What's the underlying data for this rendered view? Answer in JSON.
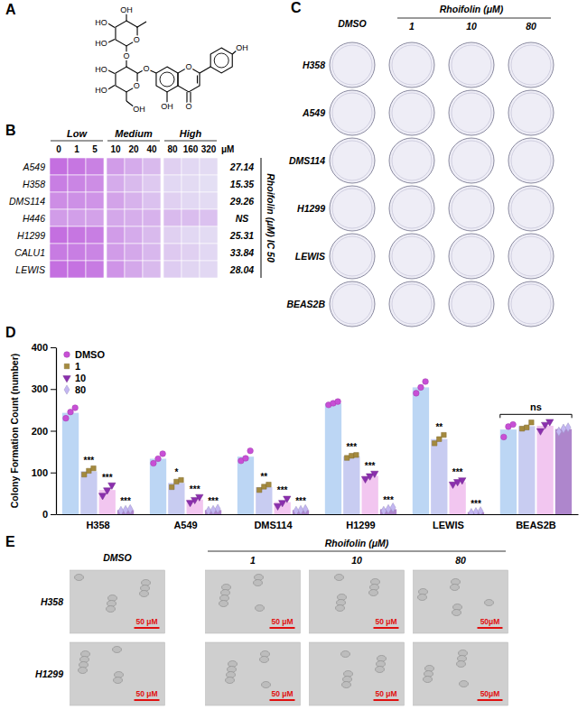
{
  "panel_labels": [
    "A",
    "B",
    "C",
    "D",
    "E"
  ],
  "structure": {
    "atoms": [
      "O",
      "HO",
      "HO",
      "OH",
      "O",
      "O",
      "HO",
      "HO",
      "OH",
      "O",
      "O",
      "OH",
      "O",
      "OH"
    ]
  },
  "colony_images": {
    "treatment": "Rhoifolin (μM)",
    "columns": [
      "DMSO",
      "1",
      "10",
      "80"
    ],
    "rows": [
      "H358",
      "A549",
      "DMS114",
      "H1299",
      "LEWIS",
      "BEAS2B"
    ]
  },
  "microscopy": {
    "treatment": "Rhoifolin (μM)",
    "columns": [
      "DMSO",
      "1",
      "10",
      "80"
    ],
    "rows": [
      "H358",
      "H1299"
    ],
    "scale_bars": [
      [
        "50 μM",
        "50 μM",
        "50 μM",
        "50μM"
      ],
      [
        "50 μM",
        "50 μM",
        "50 μM",
        "50μM"
      ]
    ]
  },
  "chart_data": [
    {
      "type": "heatmap",
      "title": "Rhoifolin (μM) IC 50",
      "x_unit": "μM",
      "groups": [
        {
          "name": "Low",
          "x": [
            0,
            1,
            5
          ]
        },
        {
          "name": "Medium",
          "x": [
            10,
            20,
            40
          ]
        },
        {
          "name": "High",
          "x": [
            80,
            160,
            320
          ]
        }
      ],
      "rows": [
        "A549",
        "H358",
        "DMS114",
        "H446",
        "H1299",
        "CALU1",
        "LEWIS"
      ],
      "cells": [
        [
          100,
          95,
          88,
          70,
          60,
          50,
          35,
          30,
          28
        ],
        [
          90,
          85,
          80,
          60,
          50,
          40,
          30,
          28,
          25
        ],
        [
          80,
          78,
          75,
          65,
          55,
          45,
          35,
          30,
          28
        ],
        [
          70,
          68,
          66,
          62,
          58,
          55,
          50,
          48,
          45
        ],
        [
          100,
          95,
          90,
          70,
          60,
          50,
          35,
          30,
          28
        ],
        [
          92,
          90,
          85,
          70,
          62,
          52,
          40,
          35,
          30
        ],
        [
          100,
          98,
          92,
          75,
          62,
          50,
          38,
          32,
          30
        ]
      ],
      "ic50": [
        27.14,
        15.35,
        29.26,
        "NS",
        25.31,
        33.84,
        28.04
      ]
    },
    {
      "type": "bar",
      "ylabel": "Colony Formation Count (number)",
      "categories": [
        "H358",
        "A549",
        "DMS114",
        "H1299",
        "LEWIS",
        "BEAS2B"
      ],
      "ylim": [
        0,
        400
      ],
      "yticks": [
        0,
        100,
        200,
        300,
        400
      ],
      "grid": false,
      "legend": "top-left",
      "series": [
        {
          "name": "DMSO",
          "color": "#c84fd6",
          "marker": "circle",
          "colors": [
            "#bcd6f4",
            "#bcd6f4",
            "#bcd6f4",
            "#bcd6f4",
            "#bcd6f4",
            "#bcd6f4"
          ],
          "values": [
            243,
            133,
            138,
            266,
            304,
            203
          ],
          "points": [
            [
              230,
              245,
              255
            ],
            [
              122,
              133,
              145
            ],
            [
              128,
              134,
              152
            ],
            [
              262,
              266,
              270
            ],
            [
              290,
              304,
              318
            ],
            [
              185,
              210,
              215
            ]
          ]
        },
        {
          "name": "1",
          "color": "#a48a3e",
          "marker": "square",
          "colors": [
            "#c8ccf1",
            "#c8ccf1",
            "#c8ccf1",
            "#c8ccf1",
            "#c8ccf1",
            "#c8ccf1"
          ],
          "values": [
            103,
            75,
            65,
            139,
            180,
            211
          ],
          "points": [
            [
              95,
              104,
              110
            ],
            [
              65,
              78,
              82
            ],
            [
              58,
              66,
              71
            ],
            [
              135,
              140,
              142
            ],
            [
              170,
              180,
              190
            ],
            [
              205,
              208,
              220
            ]
          ],
          "significance": [
            "***",
            "*",
            "**",
            "***",
            "**",
            null
          ]
        },
        {
          "name": "10",
          "color": "#8b2fae",
          "marker": "triangle-down",
          "colors": [
            "#f2c6f0",
            "#f2c6f0",
            "#f2c6f0",
            "#f2c6f0",
            "#f2c6f0",
            "#f2c6f0"
          ],
          "values": [
            58,
            35,
            29,
            92,
            77,
            212
          ],
          "points": [
            [
              45,
              58,
              70
            ],
            [
              28,
              35,
              42
            ],
            [
              20,
              28,
              38
            ],
            [
              85,
              92,
              98
            ],
            [
              72,
              78,
              82
            ],
            [
              200,
              215,
              222
            ]
          ],
          "significance": [
            "***",
            "***",
            "***",
            "***",
            "***",
            null
          ]
        },
        {
          "name": "80",
          "color": "#c3b6f2",
          "marker": "diamond",
          "colors": [
            "#ae86cc",
            "#ae86cc",
            "#ae86cc",
            "#ae86cc",
            "#ae86cc",
            "#ae86cc"
          ],
          "values": [
            10,
            10,
            10,
            12,
            5,
            204
          ],
          "points": [
            [
              8,
              10,
              12
            ],
            [
              8,
              10,
              13
            ],
            [
              8,
              10,
              12
            ],
            [
              8,
              12,
              16
            ],
            [
              3,
              5,
              7
            ],
            [
              198,
              205,
              208
            ]
          ],
          "significance": [
            "***",
            "***",
            "***",
            "***",
            "***",
            null
          ]
        }
      ],
      "annotations": [
        {
          "category": "BEAS2B",
          "text": "ns"
        }
      ]
    }
  ]
}
